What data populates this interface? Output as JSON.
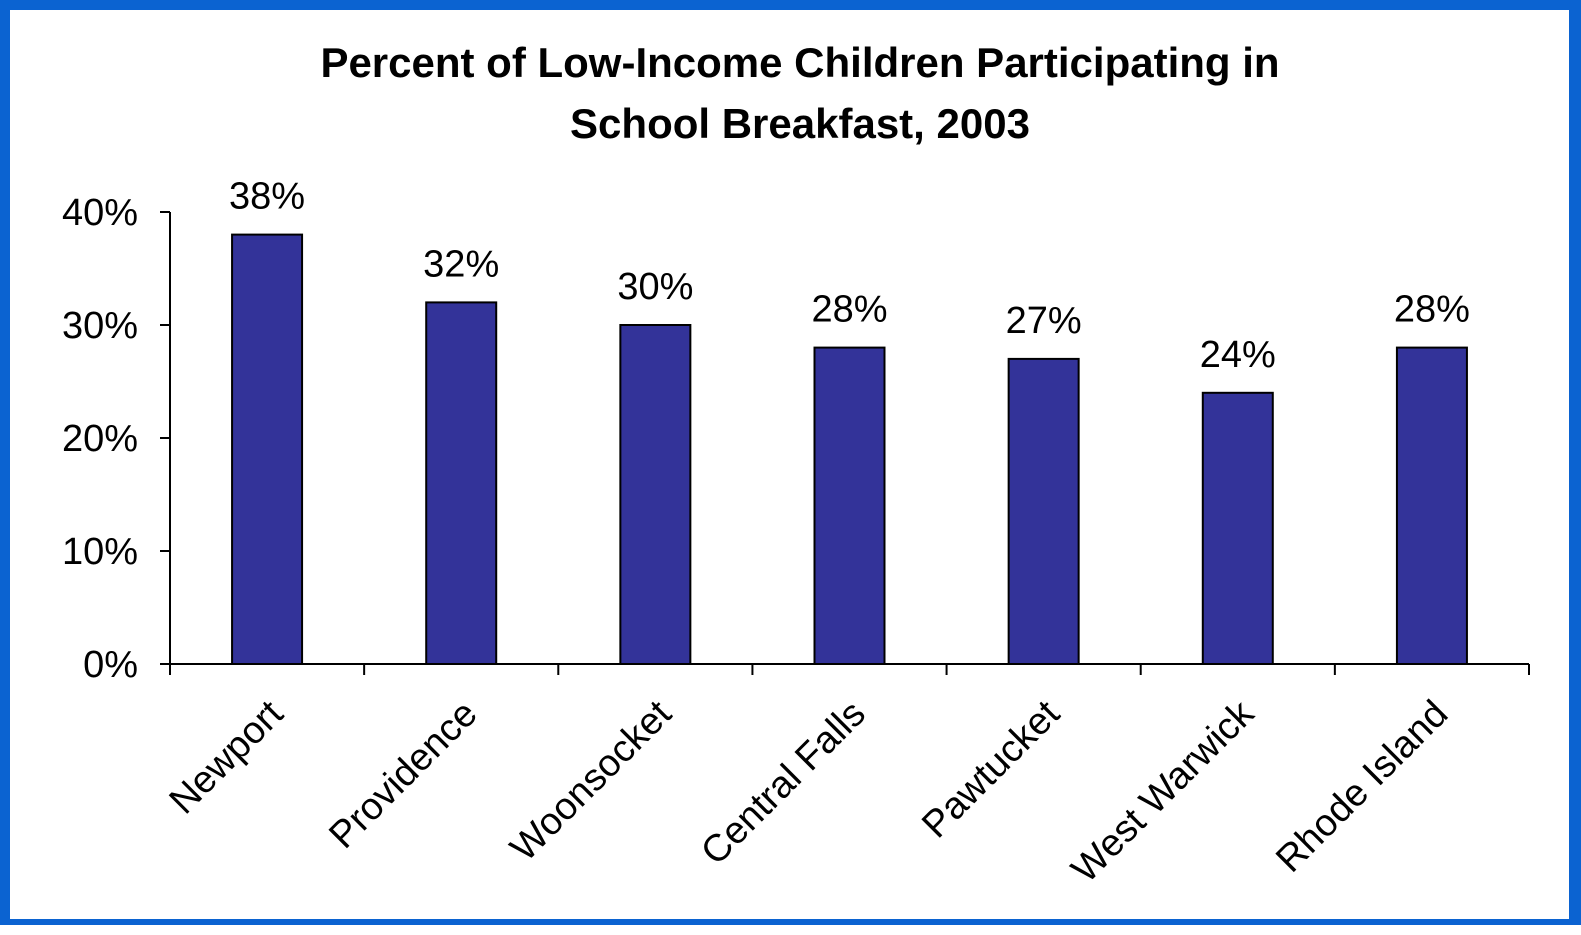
{
  "chart_data": {
    "type": "bar",
    "title_lines": [
      "Percent of Low-Income Children Participating in",
      "School Breakfast, 2003"
    ],
    "categories": [
      "Newport",
      "Providence",
      "Woonsocket",
      "Central Falls",
      "Pawtucket",
      "West Warwick",
      "Rhode Island"
    ],
    "values": [
      38,
      32,
      30,
      28,
      27,
      24,
      28
    ],
    "data_labels": [
      "38%",
      "32%",
      "30%",
      "28%",
      "27%",
      "24%",
      "28%"
    ],
    "ylim": [
      0,
      40
    ],
    "yticks": [
      0,
      10,
      20,
      30,
      40
    ],
    "ytick_labels": [
      "0%",
      "10%",
      "20%",
      "30%",
      "40%"
    ],
    "xlabel": "",
    "ylabel": "",
    "grid": false,
    "legend": "none",
    "colors": {
      "bar": "#333399",
      "frame": "#0b63d1"
    }
  }
}
